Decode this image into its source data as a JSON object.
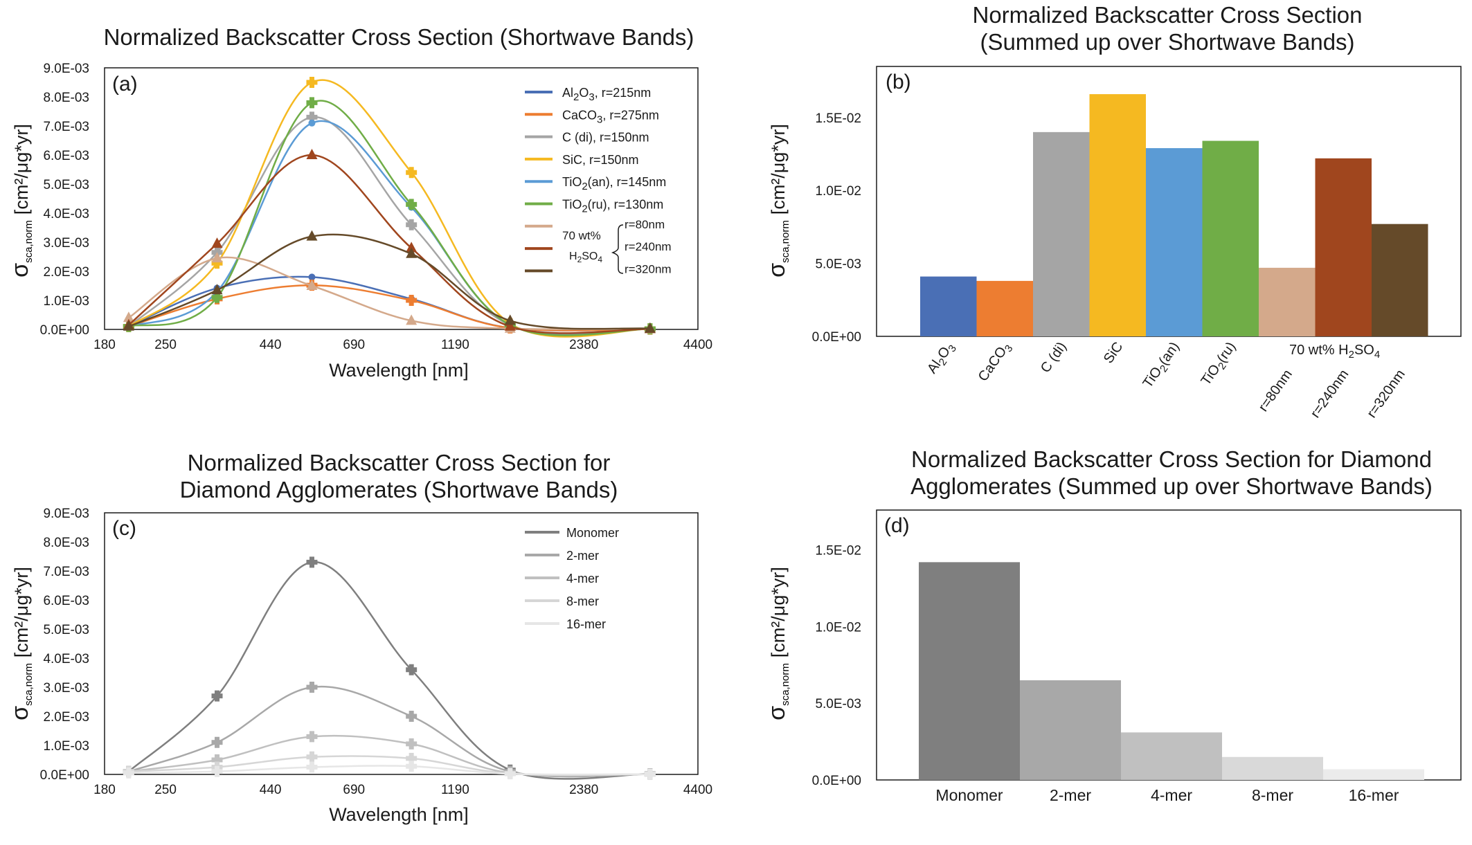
{
  "chart_data": [
    {
      "panel": "(a)",
      "type": "line",
      "title": "Normalized Backscatter Cross Section (Shortwave Bands)",
      "xlabel": "Wavelength [nm]",
      "ylabel_symbol": "σ",
      "ylabel_sub": "sca,norm",
      "ylabel_unit": "[cm²/μg*yr]",
      "x_scale": "log",
      "xlim": [
        180,
        4400
      ],
      "x_ticks": [
        "180",
        "250",
        "440",
        "690",
        "1190",
        "2380",
        "4400"
      ],
      "x_tick_values": [
        180,
        250,
        440,
        690,
        1190,
        2380,
        4400
      ],
      "ylim": [
        0,
        0.009
      ],
      "y_ticks": [
        "0.0E+00",
        "1.0E-03",
        "2.0E-03",
        "3.0E-03",
        "4.0E-03",
        "5.0E-03",
        "6.0E-03",
        "7.0E-03",
        "8.0E-03",
        "9.0E-03"
      ],
      "x": [
        205,
        330,
        550,
        940,
        1600,
        3400
      ],
      "legend_brace_text": "70 wt%",
      "legend_brace_text2": "H2SO4",
      "series": [
        {
          "name": "Al2O3, r=215nm",
          "label_main": "Al",
          "label_sub": "2",
          "label_mid": "O",
          "label_sub2": "3",
          "label_rest": ", r=215nm",
          "color": "#4a6fb5",
          "marker": "circle",
          "values": [
            0.0001,
            0.00142,
            0.0018,
            0.00105,
            5e-05,
            1e-05
          ]
        },
        {
          "name": "CaCO3, r=275nm",
          "label_main": "CaCO",
          "label_sub": "3",
          "label_mid": "",
          "label_sub2": "",
          "label_rest": ", r=275nm",
          "color": "#ed7d31",
          "marker": "plus",
          "values": [
            0.0001,
            0.00105,
            0.00152,
            0.001,
            5e-05,
            1e-05
          ]
        },
        {
          "name": "C (di), r=150nm",
          "label_main": "C (di), r=150nm",
          "label_sub": "",
          "label_mid": "",
          "label_sub2": "",
          "label_rest": "",
          "color": "#a5a5a5",
          "marker": "plus",
          "values": [
            0.0001,
            0.00265,
            0.0073,
            0.0036,
            0.00015,
            2e-05
          ]
        },
        {
          "name": "SiC, r=150nm",
          "label_main": "SiC, r=150nm",
          "label_sub": "",
          "label_mid": "",
          "label_sub2": "",
          "label_rest": "",
          "color": "#f5b921",
          "marker": "plus",
          "values": [
            0.0001,
            0.00228,
            0.0085,
            0.0054,
            0.0002,
            2e-05
          ]
        },
        {
          "name": "TiO2(an), r=145nm",
          "label_main": "TiO",
          "label_sub": "2",
          "label_mid": "(an), r=145nm",
          "label_sub2": "",
          "label_rest": "",
          "color": "#5b9bd5",
          "marker": "circle",
          "values": [
            0.0001,
            0.0013,
            0.0071,
            0.0042,
            0.00015,
            2e-05
          ]
        },
        {
          "name": "TiO2(ru), r=130nm",
          "label_main": "TiO",
          "label_sub": "2",
          "label_mid": "(ru), r=130nm",
          "label_sub2": "",
          "label_rest": "",
          "color": "#70ad47",
          "marker": "plus",
          "values": [
            0.0001,
            0.0011,
            0.0078,
            0.0043,
            0.00015,
            2e-05
          ]
        },
        {
          "name": "70 wt% H2SO4, r=80nm",
          "label_main": "r=80nm",
          "label_sub": "",
          "label_mid": "",
          "label_sub2": "",
          "label_rest": "",
          "color": "#d4a98b",
          "marker": "triangle",
          "values": [
            0.0004,
            0.00245,
            0.0015,
            0.0003,
            3e-05,
            1e-05
          ]
        },
        {
          "name": "70 wt% H2SO4, r=240nm",
          "label_main": "r=240nm",
          "label_sub": "",
          "label_mid": "",
          "label_sub2": "",
          "label_rest": "",
          "color": "#a0461e",
          "marker": "triangle",
          "values": [
            0.00015,
            0.00295,
            0.006,
            0.0028,
            0.0001,
            2e-05
          ]
        },
        {
          "name": "70 wt% H2SO4, r=320nm",
          "label_main": "r=320nm",
          "label_sub": "",
          "label_mid": "",
          "label_sub2": "",
          "label_rest": "",
          "color": "#654a29",
          "marker": "triangle",
          "values": [
            0.0001,
            0.00135,
            0.0032,
            0.0026,
            0.0003,
            3e-05
          ]
        }
      ]
    },
    {
      "panel": "(b)",
      "type": "bar",
      "title_line1": "Normalized Backscatter Cross Section",
      "title_line2": "(Summed up over Shortwave Bands)",
      "ylabel_symbol": "σ",
      "ylabel_sub": "sca,norm",
      "ylabel_unit": "[cm²/μg*yr]",
      "ylim": [
        0,
        0.0185
      ],
      "y_ticks": [
        "0.0E+00",
        "5.0E-03",
        "1.0E-02",
        "1.5E-02"
      ],
      "y_tick_values": [
        0,
        0.005,
        0.01,
        0.015
      ],
      "group_label": "70 wt% H",
      "group_label_sub": "2",
      "group_label_mid": "SO",
      "group_label_sub2": "4",
      "categories": [
        {
          "main": "Al",
          "sub": "2",
          "mid": "O",
          "sub2": "3"
        },
        {
          "main": "CaCO",
          "sub": "3",
          "mid": "",
          "sub2": ""
        },
        {
          "main": "C (di)",
          "sub": "",
          "mid": "",
          "sub2": ""
        },
        {
          "main": "SiC",
          "sub": "",
          "mid": "",
          "sub2": ""
        },
        {
          "main": "TiO",
          "sub": "2",
          "mid": "(an)",
          "sub2": ""
        },
        {
          "main": "TiO",
          "sub": "2",
          "mid": "(ru)",
          "sub2": ""
        },
        {
          "main": "r=80nm",
          "sub": "",
          "mid": "",
          "sub2": ""
        },
        {
          "main": "r=240nm",
          "sub": "",
          "mid": "",
          "sub2": ""
        },
        {
          "main": "r=320nm",
          "sub": "",
          "mid": "",
          "sub2": ""
        }
      ],
      "values": [
        0.0041,
        0.0038,
        0.014,
        0.0166,
        0.0129,
        0.0134,
        0.0047,
        0.0122,
        0.0077
      ],
      "colors": [
        "#4a6fb5",
        "#ed7d31",
        "#a5a5a5",
        "#f5b921",
        "#5b9bd5",
        "#70ad47",
        "#d4a98b",
        "#a0461e",
        "#654a29"
      ]
    },
    {
      "panel": "(c)",
      "type": "line",
      "title_line1": "Normalized Backscatter Cross Section for",
      "title_line2": "Diamond Agglomerates (Shortwave Bands)",
      "xlabel": "Wavelength [nm]",
      "ylabel_symbol": "σ",
      "ylabel_sub": "sca,norm",
      "ylabel_unit": "[cm²/μg*yr]",
      "x_scale": "log",
      "xlim": [
        180,
        4400
      ],
      "x_ticks": [
        "180",
        "250",
        "440",
        "690",
        "1190",
        "2380",
        "4400"
      ],
      "x_tick_values": [
        180,
        250,
        440,
        690,
        1190,
        2380,
        4400
      ],
      "ylim": [
        0,
        0.009
      ],
      "y_ticks": [
        "0.0E+00",
        "1.0E-03",
        "2.0E-03",
        "3.0E-03",
        "4.0E-03",
        "5.0E-03",
        "6.0E-03",
        "7.0E-03",
        "8.0E-03",
        "9.0E-03"
      ],
      "x": [
        205,
        330,
        550,
        940,
        1600,
        3400
      ],
      "series": [
        {
          "name": "Monomer",
          "color": "#7f7f7f",
          "values": [
            0.0001,
            0.0027,
            0.0073,
            0.0036,
            0.00015,
            2e-05
          ]
        },
        {
          "name": "2-mer",
          "color": "#a8a8a8",
          "values": [
            0.0001,
            0.0011,
            0.003,
            0.002,
            0.0001,
            1e-05
          ]
        },
        {
          "name": "4-mer",
          "color": "#c0c0c0",
          "values": [
            0.0001,
            0.0005,
            0.0013,
            0.00105,
            5e-05,
            1e-05
          ]
        },
        {
          "name": "8-mer",
          "color": "#d6d6d6",
          "values": [
            0.0001,
            0.00025,
            0.0006,
            0.00055,
            3e-05,
            1e-05
          ]
        },
        {
          "name": "16-mer",
          "color": "#e6e6e6",
          "values": [
            5e-05,
            0.0001,
            0.00025,
            0.00028,
            2e-05,
            1e-05
          ]
        }
      ]
    },
    {
      "panel": "(d)",
      "type": "bar",
      "title_line1": "Normalized Backscatter Cross Section for Diamond",
      "title_line2": "Agglomerates (Summed up over Shortwave Bands)",
      "ylabel_symbol": "σ",
      "ylabel_sub": "sca,norm",
      "ylabel_unit": "[cm²/μg*yr]",
      "ylim": [
        0,
        0.0176
      ],
      "y_ticks": [
        "0.0E+00",
        "5.0E-03",
        "1.0E-02",
        "1.5E-02"
      ],
      "y_tick_values": [
        0,
        0.005,
        0.01,
        0.015
      ],
      "categories": [
        "Monomer",
        "2-mer",
        "4-mer",
        "8-mer",
        "16-mer"
      ],
      "values": [
        0.0142,
        0.0065,
        0.0031,
        0.0015,
        0.0007
      ],
      "colors": [
        "#7f7f7f",
        "#a8a8a8",
        "#c0c0c0",
        "#d9d9d9",
        "#ebebeb"
      ]
    }
  ]
}
